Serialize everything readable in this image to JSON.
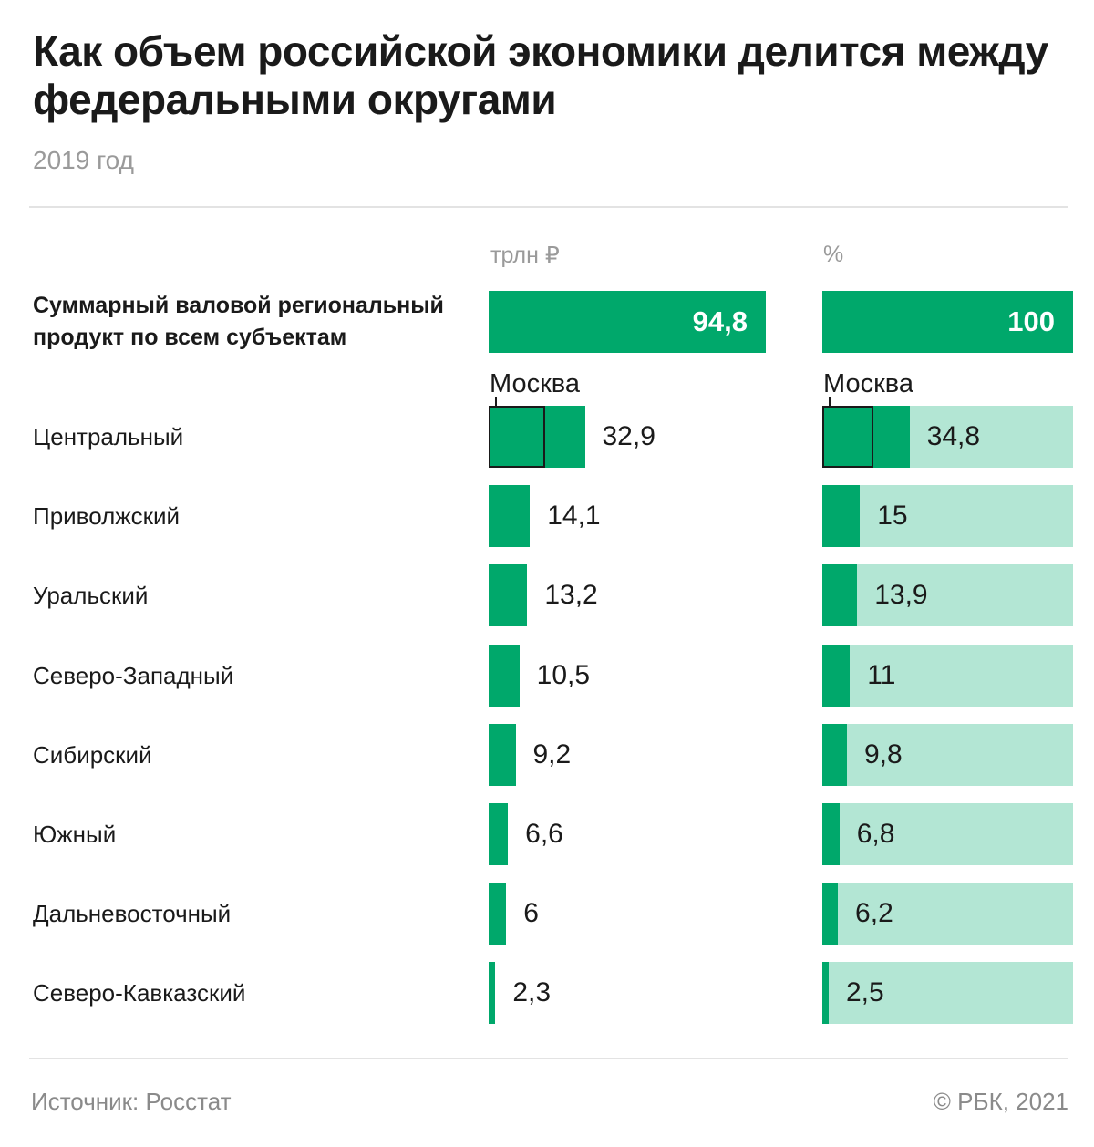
{
  "header": {
    "title": "Как объем российской экономики делится между федеральными округами",
    "subtitle": "2019 год"
  },
  "columns": {
    "abs_header": "трлн ₽",
    "pct_header": "%"
  },
  "total": {
    "label": "Суммарный валовой региональный продукт по всем субъектам",
    "abs_display": "94,8",
    "pct_display": "100"
  },
  "moscow": {
    "label_abs": "Москва",
    "label_pct": "Москва",
    "abs_value": 19.3,
    "pct_value": 20.4
  },
  "regions": [
    {
      "label": "Центральный",
      "abs_display": "32,9",
      "pct_display": "34,8"
    },
    {
      "label": "Приволжский",
      "abs_display": "14,1",
      "pct_display": "15"
    },
    {
      "label": "Уральский",
      "abs_display": "13,2",
      "pct_display": "13,9"
    },
    {
      "label": "Северо-Западный",
      "abs_display": "10,5",
      "pct_display": "11"
    },
    {
      "label": "Сибирский",
      "abs_display": "9,2",
      "pct_display": "9,8"
    },
    {
      "label": "Южный",
      "abs_display": "6,6",
      "pct_display": "6,8"
    },
    {
      "label": "Дальневосточный",
      "abs_display": "6",
      "pct_display": "6,2"
    },
    {
      "label": "Северо-Кавказский",
      "abs_display": "2,3",
      "pct_display": "2,5"
    }
  ],
  "footer": {
    "source": "Источник: Росстат",
    "copyright": "© РБК, 2021"
  },
  "colors": {
    "bar": "#00a86b",
    "track": "#b3e6d4",
    "text": "#1a1a1a",
    "muted": "#9a9a9a"
  },
  "chart_data": {
    "type": "bar",
    "categories": [
      "Центральный",
      "Приволжский",
      "Уральский",
      "Северо-Западный",
      "Сибирский",
      "Южный",
      "Дальневосточный",
      "Северо-Кавказский"
    ],
    "series": [
      {
        "name": "трлн ₽",
        "values": [
          32.9,
          14.1,
          13.2,
          10.5,
          9.2,
          6.6,
          6,
          2.3
        ]
      },
      {
        "name": "%",
        "values": [
          34.8,
          15,
          13.9,
          11,
          9.8,
          6.8,
          6.2,
          2.5
        ]
      }
    ],
    "total": {
      "трлн ₽": 94.8,
      "%": 100
    },
    "moscow_share_of_central": {
      "трлн ₽": 19.3,
      "%": 20.4
    },
    "orientation": "horizontal",
    "xlim_abs": [
      0,
      94.8
    ],
    "xlim_pct": [
      0,
      100
    ],
    "grid": false
  }
}
